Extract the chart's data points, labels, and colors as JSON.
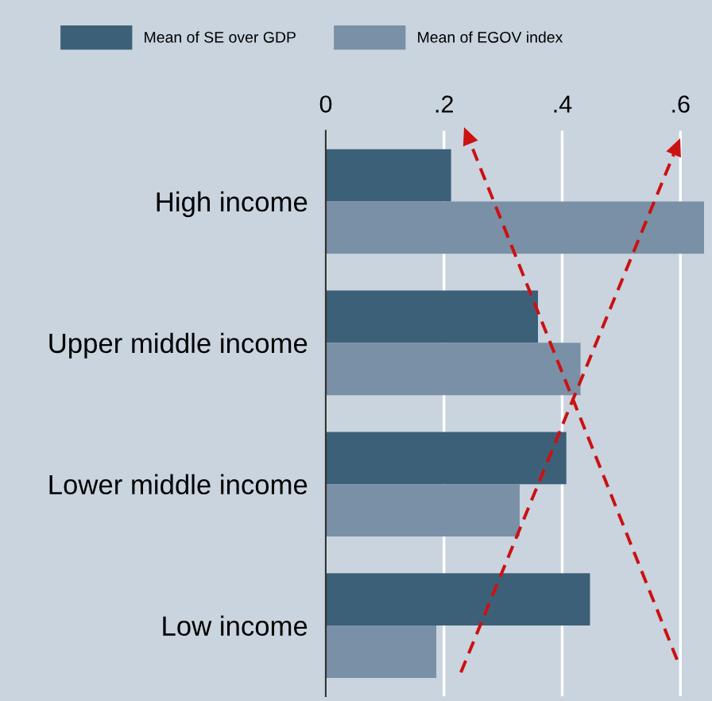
{
  "chart_data": {
    "type": "bar",
    "orientation": "horizontal",
    "categories": [
      "High income",
      "Upper middle income",
      "Lower middle income",
      "Low income"
    ],
    "series": [
      {
        "name": "Mean of SE over GDP",
        "color": "#3d6079",
        "values": [
          0.212,
          0.359,
          0.407,
          0.447
        ]
      },
      {
        "name": "Mean of EGOV index",
        "color": "#7a90a6",
        "values": [
          0.64,
          0.431,
          0.328,
          0.187
        ]
      }
    ],
    "xlim": [
      0,
      0.64
    ],
    "xticks": [
      {
        "value": 0,
        "label": "0"
      },
      {
        "value": 0.2,
        "label": ".2"
      },
      {
        "value": 0.4,
        "label": ".4"
      },
      {
        "value": 0.6,
        "label": ".6"
      }
    ],
    "grid": "x",
    "legend": "top"
  }
}
